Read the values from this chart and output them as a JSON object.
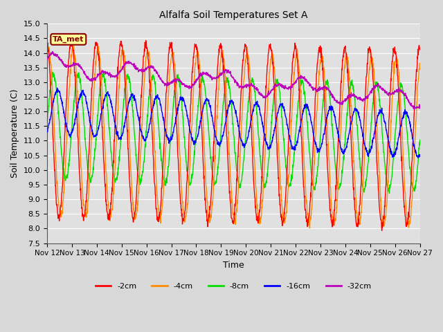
{
  "title": "Alfalfa Soil Temperatures Set A",
  "xlabel": "Time",
  "ylabel": "Soil Temperature (C)",
  "ylim": [
    7.5,
    15.0
  ],
  "yticks": [
    7.5,
    8.0,
    8.5,
    9.0,
    9.5,
    10.0,
    10.5,
    11.0,
    11.5,
    12.0,
    12.5,
    13.0,
    13.5,
    14.0,
    14.5,
    15.0
  ],
  "fig_bg_color": "#d8d8d8",
  "plot_bg_color": "#e0e0e0",
  "grid_color": "#ffffff",
  "line_colors": {
    "-2cm": "#ff0000",
    "-4cm": "#ff8c00",
    "-8cm": "#00dd00",
    "-16cm": "#0000ff",
    "-32cm": "#bb00bb"
  },
  "legend_labels": [
    "-2cm",
    "-4cm",
    "-8cm",
    "-16cm",
    "-32cm"
  ],
  "ta_met_label": "TA_met",
  "ta_met_box_color": "#ffff99",
  "ta_met_text_color": "#8b0000",
  "x_tick_labels": [
    "Nov 12",
    "Nov 13",
    "Nov 14",
    "Nov 15",
    "Nov 16",
    "Nov 17",
    "Nov 18",
    "Nov 19",
    "Nov 20",
    "Nov 21",
    "Nov 22",
    "Nov 23",
    "Nov 24",
    "Nov 25",
    "Nov 26",
    "Nov 27"
  ],
  "days": 15
}
